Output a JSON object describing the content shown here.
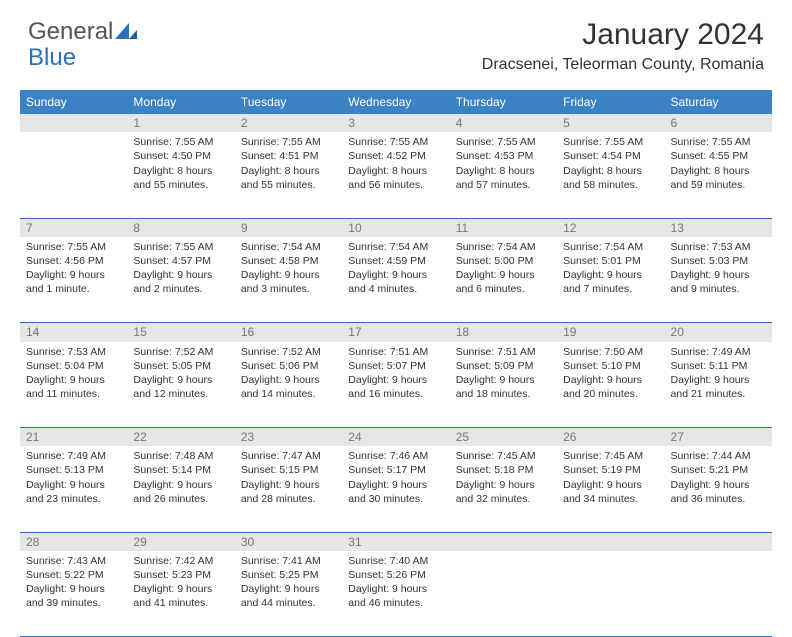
{
  "logo": {
    "text1": "General",
    "text2": "Blue",
    "text1_color": "#555555",
    "text2_color": "#2c6fbb",
    "triangle_color": "#2c6fbb"
  },
  "title": "January 2024",
  "location": "Dracsenei, Teleorman County, Romania",
  "colors": {
    "header_bg": "#3b82c4",
    "header_fg": "#ffffff",
    "daynum_bg": "#e6e6e6",
    "daynum_fg": "#777777",
    "rule": "#2c6fbb",
    "text": "#333333"
  },
  "weekdays": [
    "Sunday",
    "Monday",
    "Tuesday",
    "Wednesday",
    "Thursday",
    "Friday",
    "Saturday"
  ],
  "first_weekday": 1,
  "days": [
    {
      "n": 1,
      "sunrise": "7:55 AM",
      "sunset": "4:50 PM",
      "daylight": "8 hours and 55 minutes."
    },
    {
      "n": 2,
      "sunrise": "7:55 AM",
      "sunset": "4:51 PM",
      "daylight": "8 hours and 55 minutes."
    },
    {
      "n": 3,
      "sunrise": "7:55 AM",
      "sunset": "4:52 PM",
      "daylight": "8 hours and 56 minutes."
    },
    {
      "n": 4,
      "sunrise": "7:55 AM",
      "sunset": "4:53 PM",
      "daylight": "8 hours and 57 minutes."
    },
    {
      "n": 5,
      "sunrise": "7:55 AM",
      "sunset": "4:54 PM",
      "daylight": "8 hours and 58 minutes."
    },
    {
      "n": 6,
      "sunrise": "7:55 AM",
      "sunset": "4:55 PM",
      "daylight": "8 hours and 59 minutes."
    },
    {
      "n": 7,
      "sunrise": "7:55 AM",
      "sunset": "4:56 PM",
      "daylight": "9 hours and 1 minute."
    },
    {
      "n": 8,
      "sunrise": "7:55 AM",
      "sunset": "4:57 PM",
      "daylight": "9 hours and 2 minutes."
    },
    {
      "n": 9,
      "sunrise": "7:54 AM",
      "sunset": "4:58 PM",
      "daylight": "9 hours and 3 minutes."
    },
    {
      "n": 10,
      "sunrise": "7:54 AM",
      "sunset": "4:59 PM",
      "daylight": "9 hours and 4 minutes."
    },
    {
      "n": 11,
      "sunrise": "7:54 AM",
      "sunset": "5:00 PM",
      "daylight": "9 hours and 6 minutes."
    },
    {
      "n": 12,
      "sunrise": "7:54 AM",
      "sunset": "5:01 PM",
      "daylight": "9 hours and 7 minutes."
    },
    {
      "n": 13,
      "sunrise": "7:53 AM",
      "sunset": "5:03 PM",
      "daylight": "9 hours and 9 minutes."
    },
    {
      "n": 14,
      "sunrise": "7:53 AM",
      "sunset": "5:04 PM",
      "daylight": "9 hours and 11 minutes."
    },
    {
      "n": 15,
      "sunrise": "7:52 AM",
      "sunset": "5:05 PM",
      "daylight": "9 hours and 12 minutes."
    },
    {
      "n": 16,
      "sunrise": "7:52 AM",
      "sunset": "5:06 PM",
      "daylight": "9 hours and 14 minutes."
    },
    {
      "n": 17,
      "sunrise": "7:51 AM",
      "sunset": "5:07 PM",
      "daylight": "9 hours and 16 minutes."
    },
    {
      "n": 18,
      "sunrise": "7:51 AM",
      "sunset": "5:09 PM",
      "daylight": "9 hours and 18 minutes."
    },
    {
      "n": 19,
      "sunrise": "7:50 AM",
      "sunset": "5:10 PM",
      "daylight": "9 hours and 20 minutes."
    },
    {
      "n": 20,
      "sunrise": "7:49 AM",
      "sunset": "5:11 PM",
      "daylight": "9 hours and 21 minutes."
    },
    {
      "n": 21,
      "sunrise": "7:49 AM",
      "sunset": "5:13 PM",
      "daylight": "9 hours and 23 minutes."
    },
    {
      "n": 22,
      "sunrise": "7:48 AM",
      "sunset": "5:14 PM",
      "daylight": "9 hours and 26 minutes."
    },
    {
      "n": 23,
      "sunrise": "7:47 AM",
      "sunset": "5:15 PM",
      "daylight": "9 hours and 28 minutes."
    },
    {
      "n": 24,
      "sunrise": "7:46 AM",
      "sunset": "5:17 PM",
      "daylight": "9 hours and 30 minutes."
    },
    {
      "n": 25,
      "sunrise": "7:45 AM",
      "sunset": "5:18 PM",
      "daylight": "9 hours and 32 minutes."
    },
    {
      "n": 26,
      "sunrise": "7:45 AM",
      "sunset": "5:19 PM",
      "daylight": "9 hours and 34 minutes."
    },
    {
      "n": 27,
      "sunrise": "7:44 AM",
      "sunset": "5:21 PM",
      "daylight": "9 hours and 36 minutes."
    },
    {
      "n": 28,
      "sunrise": "7:43 AM",
      "sunset": "5:22 PM",
      "daylight": "9 hours and 39 minutes."
    },
    {
      "n": 29,
      "sunrise": "7:42 AM",
      "sunset": "5:23 PM",
      "daylight": "9 hours and 41 minutes."
    },
    {
      "n": 30,
      "sunrise": "7:41 AM",
      "sunset": "5:25 PM",
      "daylight": "9 hours and 44 minutes."
    },
    {
      "n": 31,
      "sunrise": "7:40 AM",
      "sunset": "5:26 PM",
      "daylight": "9 hours and 46 minutes."
    }
  ],
  "labels": {
    "sunrise": "Sunrise:",
    "sunset": "Sunset:",
    "daylight": "Daylight:"
  }
}
